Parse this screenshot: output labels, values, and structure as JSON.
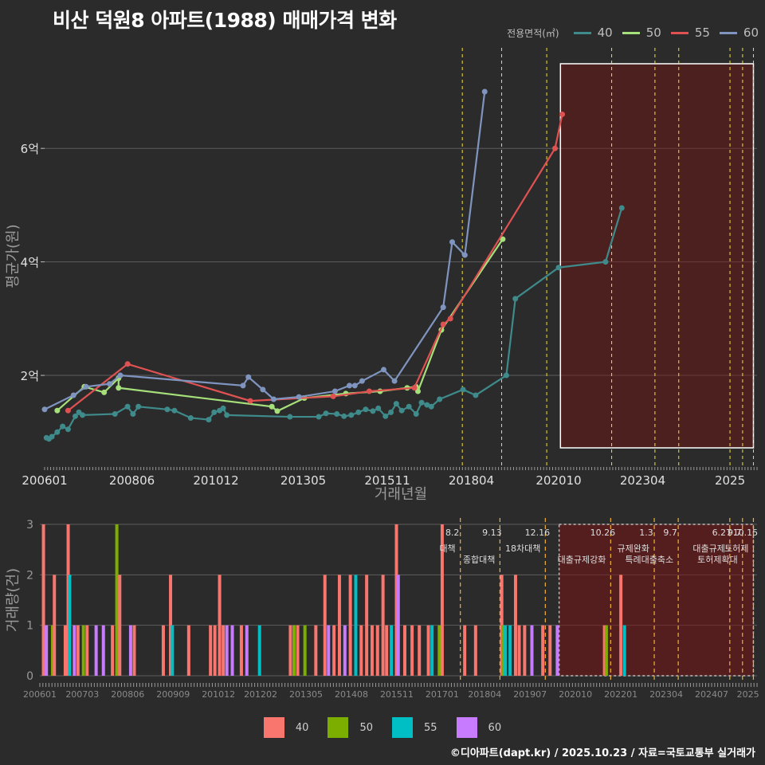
{
  "title": "비산 덕원8 아파트(1988) 매매가격 변화",
  "footer": "©디아파트(dapt.kr) / 2025.10.23 / 자료=국토교통부 실거래가",
  "legend": {
    "title": "전용면적(㎡)",
    "items": [
      {
        "label": "40",
        "color": "#3f8a8a",
        "bar_color": "#f8766d"
      },
      {
        "label": "50",
        "color": "#a6e07a",
        "bar_color": "#7cae00"
      },
      {
        "label": "55",
        "color": "#e05252",
        "bar_color": "#00bfc4"
      },
      {
        "label": "60",
        "color": "#7f95bf",
        "bar_color": "#c77cff"
      }
    ]
  },
  "chart_data": [
    {
      "type": "line",
      "name": "price",
      "xlabel": "거래년월",
      "ylabel": "평균가(원)",
      "xlim": [
        2006.0,
        2025.75
      ],
      "ylim": [
        0.4,
        7.8
      ],
      "x_ticks": [
        {
          "x": 2006.0,
          "label": "200601"
        },
        {
          "x": 2008.42,
          "label": "200806"
        },
        {
          "x": 2010.75,
          "label": "201012"
        },
        {
          "x": 2013.17,
          "label": "201305"
        },
        {
          "x": 2015.5,
          "label": "201511"
        },
        {
          "x": 2017.83,
          "label": "201804"
        },
        {
          "x": 2020.25,
          "label": "202010"
        },
        {
          "x": 2022.58,
          "label": "202304"
        },
        {
          "x": 2025.0,
          "label": "2025"
        }
      ],
      "y_ticks": [
        {
          "y": 2,
          "label": "2억"
        },
        {
          "y": 4,
          "label": "4억"
        },
        {
          "y": 6,
          "label": "6억"
        }
      ],
      "highlight_x": [
        2020.3,
        2025.65
      ],
      "event_lines": [
        {
          "x": 2017.58,
          "color": "#f2e033"
        },
        {
          "x": 2018.67,
          "color": "#f2e033"
        },
        {
          "x": 2019.92,
          "color": "#f2e033"
        },
        {
          "x": 2021.72,
          "color": "#f2e033"
        },
        {
          "x": 2022.92,
          "color": "#f2e033"
        },
        {
          "x": 2023.58,
          "color": "#f2e033"
        },
        {
          "x": 2025.0,
          "color": "#f2e033"
        },
        {
          "x": 2025.35,
          "color": "#f2e033"
        },
        {
          "x": 2025.65,
          "color": "#f2e033"
        }
      ],
      "series": [
        {
          "name": "40",
          "color": "#3f8a8a",
          "points": [
            [
              2006.05,
              0.9
            ],
            [
              2006.12,
              0.88
            ],
            [
              2006.2,
              0.92
            ],
            [
              2006.35,
              1.0
            ],
            [
              2006.5,
              1.1
            ],
            [
              2006.65,
              1.05
            ],
            [
              2006.85,
              1.28
            ],
            [
              2006.95,
              1.35
            ],
            [
              2007.05,
              1.3
            ],
            [
              2007.95,
              1.32
            ],
            [
              2008.3,
              1.45
            ],
            [
              2008.45,
              1.32
            ],
            [
              2008.6,
              1.45
            ],
            [
              2009.4,
              1.4
            ],
            [
              2009.6,
              1.38
            ],
            [
              2010.05,
              1.25
            ],
            [
              2010.55,
              1.22
            ],
            [
              2010.7,
              1.35
            ],
            [
              2010.85,
              1.38
            ],
            [
              2010.95,
              1.42
            ],
            [
              2011.05,
              1.3
            ],
            [
              2012.8,
              1.27
            ],
            [
              2013.6,
              1.27
            ],
            [
              2013.8,
              1.33
            ],
            [
              2014.1,
              1.32
            ],
            [
              2014.3,
              1.28
            ],
            [
              2014.5,
              1.3
            ],
            [
              2014.7,
              1.35
            ],
            [
              2014.9,
              1.4
            ],
            [
              2015.1,
              1.37
            ],
            [
              2015.25,
              1.42
            ],
            [
              2015.45,
              1.28
            ],
            [
              2015.6,
              1.35
            ],
            [
              2015.75,
              1.5
            ],
            [
              2015.9,
              1.38
            ],
            [
              2016.1,
              1.45
            ],
            [
              2016.3,
              1.32
            ],
            [
              2016.45,
              1.52
            ],
            [
              2016.6,
              1.48
            ],
            [
              2016.72,
              1.45
            ],
            [
              2016.95,
              1.58
            ],
            [
              2017.6,
              1.75
            ],
            [
              2017.95,
              1.65
            ],
            [
              2018.8,
              2.0
            ],
            [
              2019.05,
              3.35
            ],
            [
              2020.25,
              3.9
            ],
            [
              2021.55,
              4.0
            ],
            [
              2022.0,
              4.95
            ]
          ]
        },
        {
          "name": "50",
          "color": "#a6e07a",
          "points": [
            [
              2006.35,
              1.38
            ],
            [
              2007.1,
              1.8
            ],
            [
              2007.65,
              1.7
            ],
            [
              2008.05,
              1.95
            ],
            [
              2008.05,
              1.78
            ],
            [
              2012.3,
              1.45
            ],
            [
              2012.45,
              1.37
            ],
            [
              2013.2,
              1.6
            ],
            [
              2014.35,
              1.68
            ],
            [
              2015.3,
              1.72
            ],
            [
              2016.05,
              1.78
            ],
            [
              2016.3,
              1.8
            ],
            [
              2016.35,
              1.72
            ],
            [
              2017.0,
              2.8
            ],
            [
              2018.7,
              4.4
            ]
          ]
        },
        {
          "name": "55",
          "color": "#e05252",
          "points": [
            [
              2006.65,
              1.38
            ],
            [
              2008.3,
              2.2
            ],
            [
              2011.7,
              1.55
            ],
            [
              2014.0,
              1.63
            ],
            [
              2015.0,
              1.72
            ],
            [
              2016.25,
              1.78
            ],
            [
              2017.05,
              2.9
            ],
            [
              2017.25,
              3.0
            ],
            [
              2020.15,
              6.0
            ],
            [
              2020.35,
              6.6
            ]
          ]
        },
        {
          "name": "60",
          "color": "#7f95bf",
          "points": [
            [
              2006.0,
              1.4
            ],
            [
              2006.8,
              1.65
            ],
            [
              2007.15,
              1.8
            ],
            [
              2007.8,
              1.85
            ],
            [
              2008.1,
              2.0
            ],
            [
              2011.5,
              1.82
            ],
            [
              2011.65,
              1.97
            ],
            [
              2012.05,
              1.75
            ],
            [
              2012.35,
              1.58
            ],
            [
              2013.05,
              1.62
            ],
            [
              2014.05,
              1.72
            ],
            [
              2014.45,
              1.82
            ],
            [
              2014.6,
              1.82
            ],
            [
              2014.8,
              1.9
            ],
            [
              2015.4,
              2.1
            ],
            [
              2015.7,
              1.9
            ],
            [
              2017.05,
              3.2
            ],
            [
              2017.3,
              4.35
            ],
            [
              2017.65,
              4.12
            ],
            [
              2018.2,
              7.0
            ]
          ]
        }
      ]
    },
    {
      "type": "bar",
      "name": "volume",
      "ylabel": "거래량(건)",
      "xlim": [
        2006.0,
        2025.75
      ],
      "ylim": [
        0,
        3
      ],
      "y_ticks": [
        0,
        1,
        2,
        3
      ],
      "x_ticks": [
        {
          "x": 2006.0,
          "label": "200601"
        },
        {
          "x": 2007.17,
          "label": "200703"
        },
        {
          "x": 2008.42,
          "label": "200806"
        },
        {
          "x": 2009.67,
          "label": "200909"
        },
        {
          "x": 2010.92,
          "label": "201012"
        },
        {
          "x": 2012.08,
          "label": "201202"
        },
        {
          "x": 2013.33,
          "label": "201305"
        },
        {
          "x": 2014.58,
          "label": "201408"
        },
        {
          "x": 2015.83,
          "label": "201511"
        },
        {
          "x": 2017.08,
          "label": "201701"
        },
        {
          "x": 2018.25,
          "label": "201804"
        },
        {
          "x": 2019.5,
          "label": "201907"
        },
        {
          "x": 2020.75,
          "label": "202010"
        },
        {
          "x": 2022.0,
          "label": "202201"
        },
        {
          "x": 2023.25,
          "label": "202304"
        },
        {
          "x": 2024.5,
          "label": "202407"
        },
        {
          "x": 2025.5,
          "label": "2025"
        }
      ],
      "highlight_x": [
        2020.3,
        2025.65
      ],
      "events": [
        {
          "x": 2017.58,
          "date": "8.2",
          "text": "대책"
        },
        {
          "x": 2018.67,
          "date": "9.13",
          "text": "종합대책"
        },
        {
          "x": 2019.92,
          "date": "12.16",
          "text": "18차대책"
        },
        {
          "x": 2021.72,
          "date": "10.26",
          "text": "대출규제강화"
        },
        {
          "x": 2022.92,
          "date": "1.3",
          "text": "규제완화"
        },
        {
          "x": 2023.58,
          "date": "9.7",
          "text": "특례대출축소"
        },
        {
          "x": 2025.0,
          "date": "6.27",
          "text": "대출규제"
        },
        {
          "x": 2025.35,
          "date": "9.7",
          "text": "토허제확대"
        },
        {
          "x": 2025.65,
          "date": "10.15",
          "text": "토허제"
        }
      ],
      "bars": [
        {
          "x": 2006.1,
          "value": 3,
          "group": "40"
        },
        {
          "x": 2006.18,
          "value": 1,
          "group": "60"
        },
        {
          "x": 2006.35,
          "value": 1,
          "group": "50"
        },
        {
          "x": 2006.4,
          "value": 2,
          "group": "40"
        },
        {
          "x": 2006.7,
          "value": 1,
          "group": "40"
        },
        {
          "x": 2006.78,
          "value": 3,
          "group": "40"
        },
        {
          "x": 2006.82,
          "value": 2,
          "group": "55"
        },
        {
          "x": 2006.95,
          "value": 1,
          "group": "60"
        },
        {
          "x": 2007.05,
          "value": 1,
          "group": "40"
        },
        {
          "x": 2007.2,
          "value": 1,
          "group": "50"
        },
        {
          "x": 2007.3,
          "value": 1,
          "group": "40"
        },
        {
          "x": 2007.55,
          "value": 1,
          "group": "60"
        },
        {
          "x": 2007.75,
          "value": 1,
          "group": "60"
        },
        {
          "x": 2008.0,
          "value": 1,
          "group": "40"
        },
        {
          "x": 2008.12,
          "value": 3,
          "group": "50"
        },
        {
          "x": 2008.2,
          "value": 2,
          "group": "40"
        },
        {
          "x": 2008.5,
          "value": 1,
          "group": "60"
        },
        {
          "x": 2008.6,
          "value": 1,
          "group": "40"
        },
        {
          "x": 2009.4,
          "value": 1,
          "group": "40"
        },
        {
          "x": 2009.6,
          "value": 2,
          "group": "40"
        },
        {
          "x": 2009.65,
          "value": 1,
          "group": "55"
        },
        {
          "x": 2010.1,
          "value": 1,
          "group": "40"
        },
        {
          "x": 2010.7,
          "value": 1,
          "group": "40"
        },
        {
          "x": 2010.82,
          "value": 1,
          "group": "40"
        },
        {
          "x": 2010.95,
          "value": 2,
          "group": "40"
        },
        {
          "x": 2011.05,
          "value": 1,
          "group": "40"
        },
        {
          "x": 2011.15,
          "value": 1,
          "group": "60"
        },
        {
          "x": 2011.3,
          "value": 1,
          "group": "60"
        },
        {
          "x": 2011.55,
          "value": 1,
          "group": "40"
        },
        {
          "x": 2011.7,
          "value": 1,
          "group": "60"
        },
        {
          "x": 2012.05,
          "value": 1,
          "group": "55"
        },
        {
          "x": 2012.9,
          "value": 1,
          "group": "40"
        },
        {
          "x": 2013.0,
          "value": 1,
          "group": "50"
        },
        {
          "x": 2013.1,
          "value": 1,
          "group": "40"
        },
        {
          "x": 2013.3,
          "value": 1,
          "group": "50"
        },
        {
          "x": 2013.6,
          "value": 1,
          "group": "40"
        },
        {
          "x": 2013.85,
          "value": 2,
          "group": "40"
        },
        {
          "x": 2013.95,
          "value": 1,
          "group": "60"
        },
        {
          "x": 2014.1,
          "value": 1,
          "group": "40"
        },
        {
          "x": 2014.25,
          "value": 2,
          "group": "40"
        },
        {
          "x": 2014.4,
          "value": 1,
          "group": "60"
        },
        {
          "x": 2014.55,
          "value": 2,
          "group": "40"
        },
        {
          "x": 2014.7,
          "value": 2,
          "group": "55"
        },
        {
          "x": 2014.85,
          "value": 1,
          "group": "40"
        },
        {
          "x": 2015.0,
          "value": 2,
          "group": "40"
        },
        {
          "x": 2015.15,
          "value": 1,
          "group": "40"
        },
        {
          "x": 2015.3,
          "value": 1,
          "group": "40"
        },
        {
          "x": 2015.45,
          "value": 2,
          "group": "40"
        },
        {
          "x": 2015.55,
          "value": 1,
          "group": "40"
        },
        {
          "x": 2015.68,
          "value": 1,
          "group": "55"
        },
        {
          "x": 2015.82,
          "value": 3,
          "group": "40"
        },
        {
          "x": 2015.87,
          "value": 2,
          "group": "60"
        },
        {
          "x": 2016.05,
          "value": 1,
          "group": "40"
        },
        {
          "x": 2016.25,
          "value": 1,
          "group": "40"
        },
        {
          "x": 2016.45,
          "value": 1,
          "group": "40"
        },
        {
          "x": 2016.7,
          "value": 1,
          "group": "40"
        },
        {
          "x": 2016.8,
          "value": 1,
          "group": "55"
        },
        {
          "x": 2017.0,
          "value": 1,
          "group": "50"
        },
        {
          "x": 2017.08,
          "value": 3,
          "group": "40"
        },
        {
          "x": 2017.7,
          "value": 1,
          "group": "40"
        },
        {
          "x": 2018.0,
          "value": 1,
          "group": "40"
        },
        {
          "x": 2018.72,
          "value": 2,
          "group": "40"
        },
        {
          "x": 2018.75,
          "value": 1,
          "group": "50"
        },
        {
          "x": 2018.82,
          "value": 1,
          "group": "55"
        },
        {
          "x": 2018.95,
          "value": 1,
          "group": "55"
        },
        {
          "x": 2019.1,
          "value": 2,
          "group": "40"
        },
        {
          "x": 2019.2,
          "value": 1,
          "group": "40"
        },
        {
          "x": 2019.35,
          "value": 1,
          "group": "40"
        },
        {
          "x": 2019.55,
          "value": 1,
          "group": "60"
        },
        {
          "x": 2019.85,
          "value": 1,
          "group": "40"
        },
        {
          "x": 2020.05,
          "value": 1,
          "group": "40"
        },
        {
          "x": 2020.25,
          "value": 1,
          "group": "60"
        },
        {
          "x": 2021.55,
          "value": 1,
          "group": "40"
        },
        {
          "x": 2021.6,
          "value": 1,
          "group": "50"
        },
        {
          "x": 2022.0,
          "value": 2,
          "group": "40"
        },
        {
          "x": 2022.1,
          "value": 1,
          "group": "55"
        }
      ]
    }
  ]
}
